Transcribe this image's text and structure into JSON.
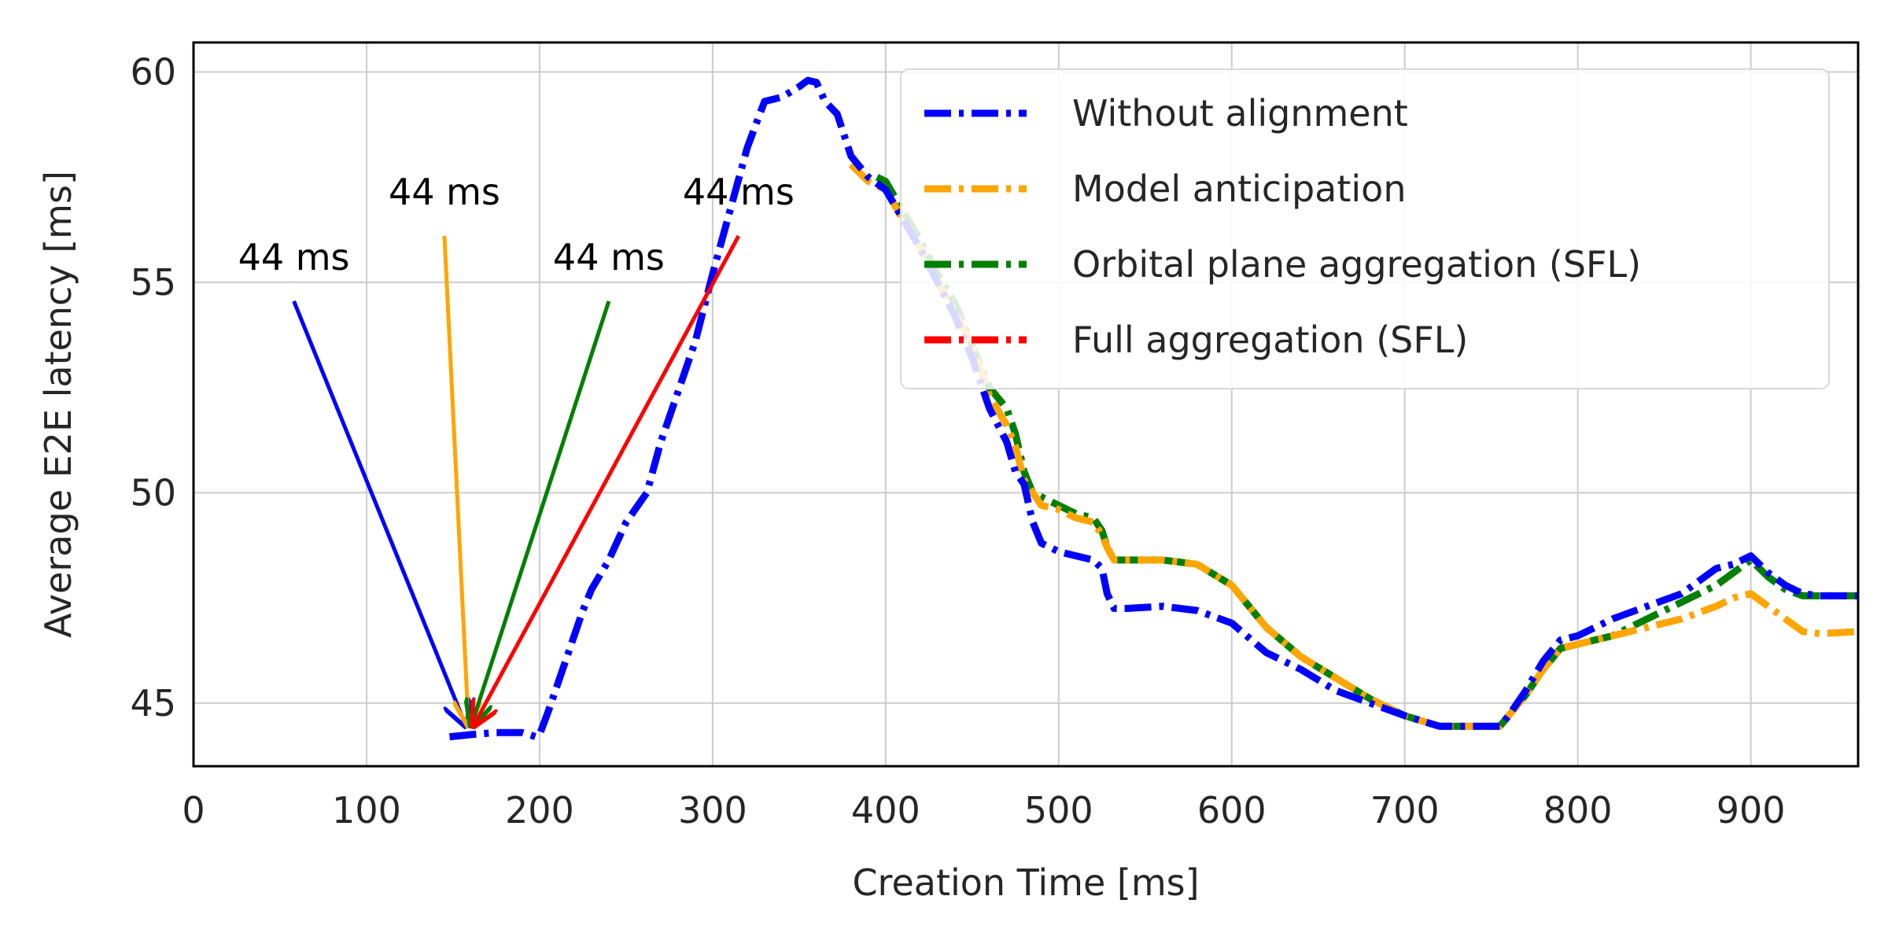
{
  "chart_data": {
    "type": "line",
    "xlabel": "Creation Time [ms]",
    "ylabel": "Average E2E latency [ms]",
    "xlim": [
      0,
      962
    ],
    "ylim": [
      43.5,
      60.7
    ],
    "xticks": [
      0,
      100,
      200,
      300,
      400,
      500,
      600,
      700,
      800,
      900
    ],
    "yticks": [
      45,
      50,
      55,
      60
    ],
    "grid": true,
    "legend_position": "top-right",
    "series": [
      {
        "name": "Without alignment",
        "color": "#0000ff",
        "x": [
          148,
          160,
          175,
          190,
          198,
          200,
          205,
          215,
          225,
          230,
          240,
          250,
          262,
          270,
          280,
          290,
          300,
          310,
          320,
          330,
          340,
          350,
          355,
          360,
          365,
          372,
          380,
          390,
          400,
          410,
          420,
          430,
          440,
          450,
          460,
          470,
          475,
          480,
          485,
          490,
          500,
          510,
          520,
          525,
          528,
          532,
          540,
          560,
          580,
          600,
          620,
          640,
          660,
          680,
          700,
          720,
          740,
          755,
          760,
          770,
          780,
          790,
          800,
          820,
          840,
          860,
          880,
          890,
          900,
          910,
          920,
          930,
          940,
          962
        ],
        "y": [
          44.2,
          44.25,
          44.3,
          44.3,
          44.2,
          44.25,
          44.8,
          46.0,
          47.2,
          47.7,
          48.4,
          49.3,
          50.0,
          51.2,
          52.4,
          53.6,
          55.2,
          56.7,
          58.2,
          59.3,
          59.4,
          59.65,
          59.8,
          59.75,
          59.3,
          59.0,
          58.0,
          57.5,
          57.2,
          56.5,
          55.8,
          55.0,
          54.2,
          53.2,
          52.0,
          51.2,
          50.5,
          50.2,
          49.3,
          48.8,
          48.6,
          48.5,
          48.4,
          48.2,
          47.6,
          47.25,
          47.25,
          47.3,
          47.2,
          46.9,
          46.2,
          45.8,
          45.3,
          45.0,
          44.7,
          44.45,
          44.45,
          44.45,
          44.7,
          45.3,
          46.0,
          46.5,
          46.6,
          47.0,
          47.3,
          47.6,
          48.2,
          48.3,
          48.5,
          48.1,
          47.8,
          47.6,
          47.55,
          47.55
        ]
      },
      {
        "name": "Model anticipation",
        "color": "#ffa500",
        "x": [
          380,
          390,
          400,
          410,
          420,
          430,
          440,
          450,
          460,
          470,
          475,
          480,
          485,
          490,
          500,
          510,
          520,
          525,
          528,
          532,
          540,
          560,
          580,
          600,
          620,
          640,
          660,
          680,
          700,
          720,
          740,
          755,
          760,
          770,
          780,
          790,
          800,
          820,
          840,
          860,
          880,
          890,
          900,
          910,
          920,
          930,
          940,
          962
        ],
        "y": [
          57.8,
          57.4,
          57.2,
          56.5,
          55.8,
          55.0,
          54.3,
          53.5,
          52.3,
          51.6,
          51.1,
          50.3,
          50.0,
          49.7,
          49.6,
          49.4,
          49.3,
          49.0,
          48.7,
          48.4,
          48.4,
          48.4,
          48.3,
          47.8,
          46.8,
          46.1,
          45.6,
          45.1,
          44.7,
          44.45,
          44.45,
          44.45,
          44.7,
          45.2,
          45.8,
          46.3,
          46.4,
          46.6,
          46.8,
          47.0,
          47.3,
          47.5,
          47.6,
          47.3,
          47.0,
          46.7,
          46.65,
          46.7
        ]
      },
      {
        "name": "Orbital plane aggregation (SFL)",
        "color": "#008000",
        "x": [
          395,
          400,
          410,
          420,
          430,
          440,
          450,
          460,
          470,
          475,
          480,
          485,
          490,
          500,
          510,
          520,
          525,
          528,
          532,
          540,
          560,
          580,
          600,
          620,
          640,
          660,
          680,
          700,
          720,
          740,
          755,
          760,
          770,
          780,
          790,
          800,
          820,
          840,
          860,
          880,
          890,
          900,
          910,
          920,
          930,
          940,
          962
        ],
        "y": [
          57.5,
          57.4,
          56.7,
          56.0,
          55.2,
          54.5,
          53.5,
          52.5,
          52.0,
          51.4,
          50.5,
          50.0,
          49.9,
          49.7,
          49.5,
          49.4,
          49.1,
          48.7,
          48.4,
          48.4,
          48.4,
          48.3,
          47.8,
          46.8,
          46.1,
          45.6,
          45.1,
          44.7,
          44.45,
          44.45,
          44.45,
          44.7,
          45.2,
          45.8,
          46.3,
          46.4,
          46.6,
          47.0,
          47.4,
          47.8,
          48.1,
          48.4,
          48.0,
          47.7,
          47.55,
          47.55,
          47.55
        ]
      },
      {
        "name": "Full aggregation (SFL)",
        "color": "#ff0000",
        "x": [],
        "y": []
      }
    ],
    "annotations": [
      {
        "text": "44 ms",
        "color": "#0000ff",
        "text_at": [
          58,
          55.3
        ],
        "point": [
          158,
          44.4
        ]
      },
      {
        "text": "44 ms",
        "color": "#ffa500",
        "text_at": [
          145,
          56.85
        ],
        "point": [
          159,
          44.4
        ]
      },
      {
        "text": "44 ms",
        "color": "#008000",
        "text_at": [
          240,
          55.3
        ],
        "point": [
          160,
          44.4
        ]
      },
      {
        "text": "44 ms",
        "color": "#ff0000",
        "text_at": [
          315,
          56.85
        ],
        "point": [
          161,
          44.4
        ]
      }
    ]
  }
}
